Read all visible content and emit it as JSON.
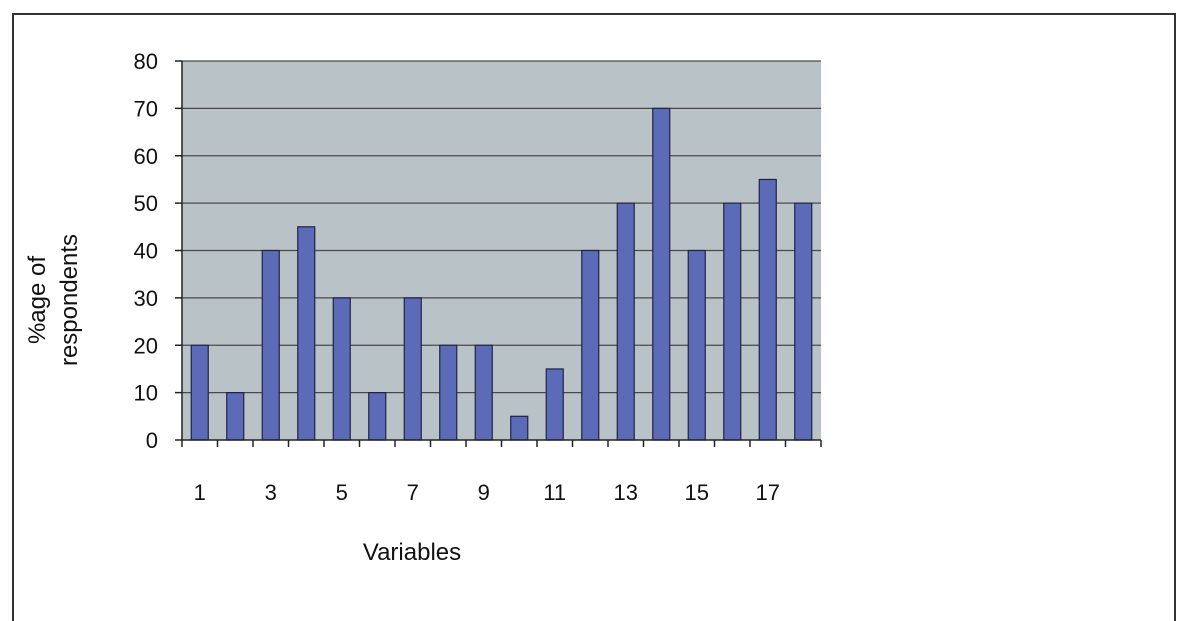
{
  "chart_data": {
    "type": "bar",
    "categories": [
      "1",
      "2",
      "3",
      "4",
      "5",
      "6",
      "7",
      "8",
      "9",
      "10",
      "11",
      "12",
      "13",
      "14",
      "15",
      "16",
      "17",
      "18"
    ],
    "x_tick_labels": [
      "1",
      "3",
      "5",
      "7",
      "9",
      "11",
      "13",
      "15",
      "17"
    ],
    "values": [
      20,
      10,
      40,
      45,
      30,
      10,
      30,
      20,
      20,
      5,
      15,
      40,
      50,
      70,
      40,
      50,
      55,
      50
    ],
    "xlabel": "Variables",
    "ylabel_lines": [
      "%age of",
      "respondents"
    ],
    "ylim": [
      0,
      80
    ],
    "y_ticks": [
      0,
      10,
      20,
      30,
      40,
      50,
      60,
      70,
      80
    ],
    "grid": true,
    "legend": "none",
    "colors": {
      "plot_background": "#b9c3c7",
      "bar_fill": "#5b6bb8",
      "bar_stroke": "#1f2444",
      "gridline": "#4a4a4a"
    }
  }
}
